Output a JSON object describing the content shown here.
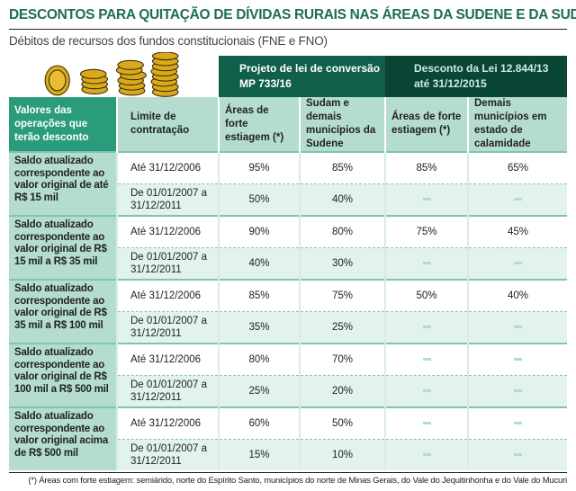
{
  "title": "DESCONTOS PARA QUITAÇÃO DE DÍVIDAS RURAIS NAS ÁREAS DA SUDENE E DA SUDAM",
  "subtitle": "Débitos de recursos dos fundos constitucionais (FNE e FNO)",
  "groups": {
    "g1": "Projeto de lei de conversão MP 733/16",
    "g2": "Desconto da Lei 12.844/13 até 31/12/2015"
  },
  "columns": [
    "Valores das operações que terão desconto",
    "Limite de contratação",
    "Áreas de forte estiagem (*)",
    "Sudam e demais municípios da Sudene",
    "Áreas de forte estiagem (*)",
    "Demais municípios em estado de calamidade"
  ],
  "rows": [
    {
      "label": "Saldo atualizado correspondente ao valor original de até R$ 15 mil",
      "a": {
        "limit": "Até 31/12/2006",
        "v": [
          "95%",
          "85%",
          "85%",
          "65%"
        ]
      },
      "b": {
        "limit": "De 01/01/2007 a 31/12/2011",
        "v": [
          "50%",
          "40%"
        ]
      }
    },
    {
      "label": "Saldo atualizado correspondente ao valor original de R$ 15 mil a R$ 35 mil",
      "a": {
        "limit": "Até 31/12/2006",
        "v": [
          "90%",
          "80%",
          "75%",
          "45%"
        ]
      },
      "b": {
        "limit": "De 01/01/2007 a 31/12/2011",
        "v": [
          "40%",
          "30%"
        ]
      }
    },
    {
      "label": "Saldo atualizado correspondente ao valor original de R$ 35 mil a R$ 100 mil",
      "a": {
        "limit": "Até 31/12/2006",
        "v": [
          "85%",
          "75%",
          "50%",
          "40%"
        ]
      },
      "b": {
        "limit": "De 01/01/2007 a 31/12/2011",
        "v": [
          "35%",
          "25%"
        ]
      }
    },
    {
      "label": "Saldo atualizado correspondente ao valor original de R$ 100 mil a R$ 500 mil",
      "a": {
        "limit": "Até 31/12/2006",
        "v": [
          "80%",
          "70%",
          "",
          ""
        ]
      },
      "b": {
        "limit": "De 01/01/2007 a 31/12/2011",
        "v": [
          "25%",
          "20%"
        ]
      }
    },
    {
      "label": "Saldo atualizado correspondente ao valor original acima de R$ 500 mil",
      "a": {
        "limit": "Até 31/12/2006",
        "v": [
          "60%",
          "50%",
          "",
          ""
        ]
      },
      "b": {
        "limit": "De 01/01/2007 a 31/12/2011",
        "v": [
          "15%",
          "10%"
        ]
      }
    }
  ],
  "footnote": "(*) Áreas com forte estiagem: semiárido, norte do Espírito Santo, municípios do norte de Minas Gerais, do Vale do Jequitinhonha e do Vale do Mucuri"
}
